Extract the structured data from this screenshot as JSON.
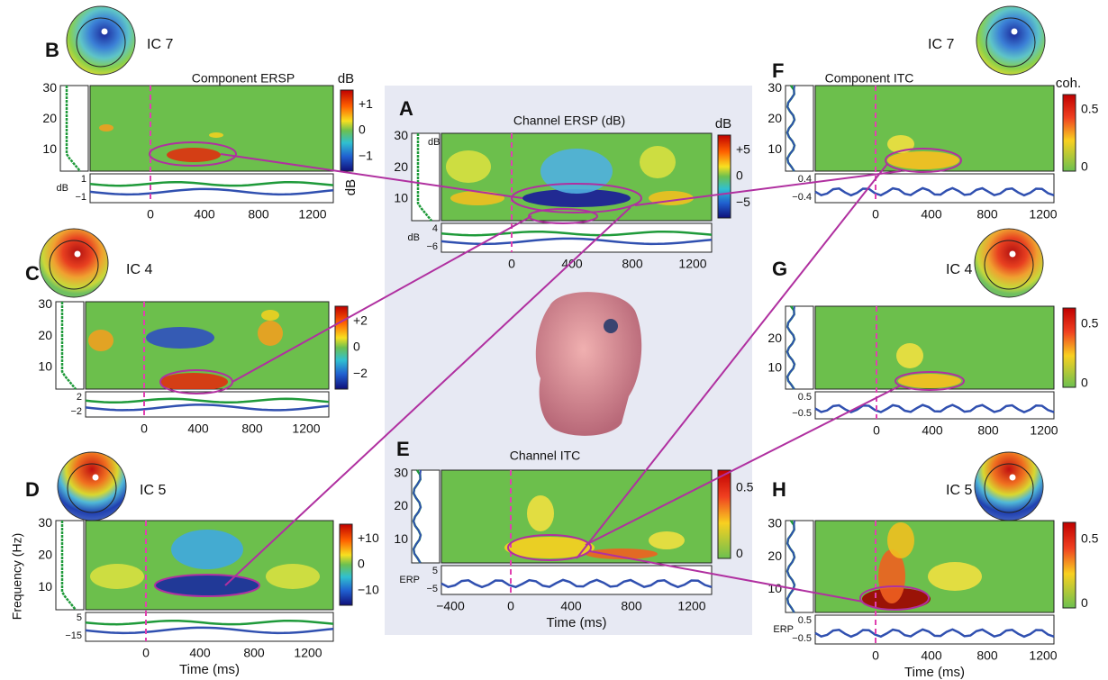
{
  "ylabel": "Frequency (Hz)",
  "panels": [
    {
      "letter": "B",
      "ic": "IC 7",
      "title": "Component ERSP",
      "cbar_label": "dB",
      "cbar_ticks": [
        "+1",
        "0",
        "−1"
      ],
      "yticks": [
        "30",
        "20",
        "10"
      ],
      "trace_label": "dB",
      "trace_ticks": [
        "1",
        "−1"
      ],
      "xticks": [
        "0",
        "400",
        "800",
        "1200"
      ]
    },
    {
      "letter": "C",
      "ic": "IC 4",
      "cbar_ticks": [
        "+2",
        "0",
        "−2"
      ],
      "yticks": [
        "30",
        "20",
        "10"
      ],
      "trace_ticks": [
        "2",
        "−2"
      ],
      "xticks": [
        "0",
        "400",
        "800",
        "1200"
      ]
    },
    {
      "letter": "D",
      "ic": "IC 5",
      "cbar_ticks": [
        "+10",
        "0",
        "−10"
      ],
      "yticks": [
        "30",
        "20",
        "10"
      ],
      "trace_ticks": [
        "5",
        "−15"
      ],
      "xticks": [
        "0",
        "400",
        "800",
        "1200"
      ],
      "xlabel": "Time (ms)"
    },
    {
      "letter": "A",
      "title": "Channel  ERSP (dB)",
      "cbar_label": "dB",
      "cbar_ticks": [
        "+5",
        "0",
        "−5"
      ],
      "yticks": [
        "30",
        "20",
        "10"
      ],
      "strip_label": "dB",
      "trace_label": "dB",
      "trace_ticks": [
        "4",
        "−6"
      ],
      "xticks": [
        "0",
        "400",
        "800",
        "1200"
      ]
    },
    {
      "letter": "E",
      "title": "Channel  ITC",
      "cbar_ticks": [
        "0.5",
        "0"
      ],
      "yticks": [
        "30",
        "20",
        "10"
      ],
      "trace_label": "ERP",
      "trace_ticks": [
        "5",
        "−5"
      ],
      "xticks": [
        "−400",
        "0",
        "400",
        "800",
        "1200"
      ],
      "xlabel": "Time (ms)"
    },
    {
      "letter": "F",
      "ic": "IC 7",
      "title": "Component ITC",
      "cbar_label": "coh.",
      "cbar_ticks": [
        "0.5",
        "0"
      ],
      "yticks": [
        "30",
        "20",
        "10"
      ],
      "trace_ticks": [
        "0.4",
        "−0.4"
      ],
      "xticks": [
        "0",
        "400",
        "800",
        "1200"
      ]
    },
    {
      "letter": "G",
      "ic": "IC 4",
      "cbar_ticks": [
        "0.5",
        "0"
      ],
      "yticks": [
        "20",
        "10"
      ],
      "trace_ticks": [
        "0.5",
        "−0.5"
      ],
      "xticks": [
        "0",
        "400",
        "800",
        "1200"
      ]
    },
    {
      "letter": "H",
      "ic": "IC 5",
      "cbar_ticks": [
        "0.5",
        "0"
      ],
      "yticks": [
        "30",
        "20",
        "10"
      ],
      "trace_label": "ERP",
      "trace_ticks": [
        "0.5",
        "−0.5"
      ],
      "xticks": [
        "0",
        "400",
        "800",
        "1200"
      ],
      "xlabel": "Time (ms)"
    }
  ]
}
